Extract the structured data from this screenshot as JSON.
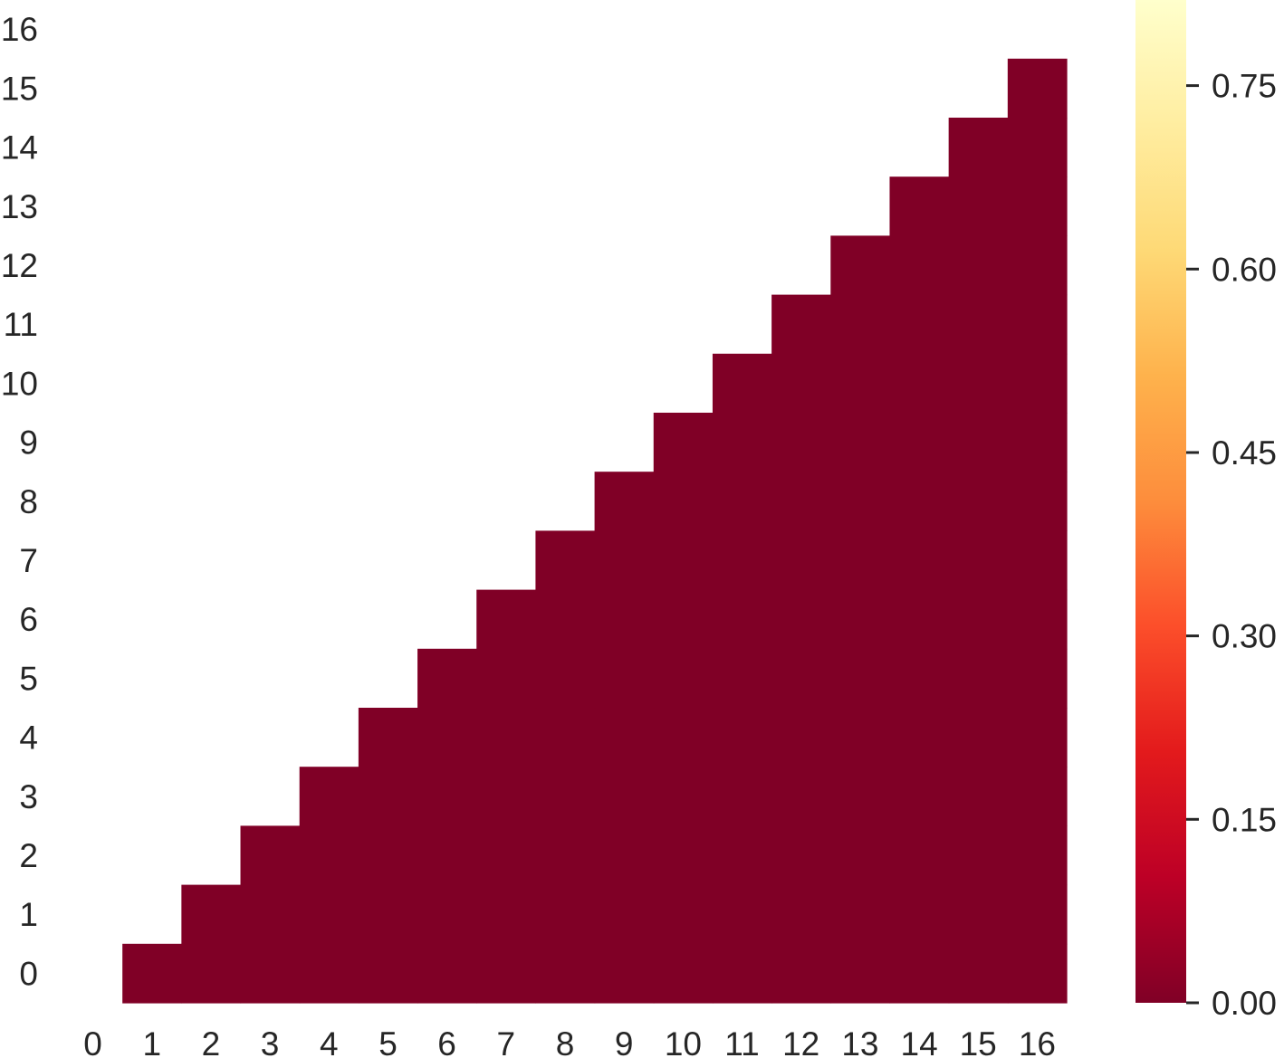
{
  "chart_data": {
    "type": "heatmap",
    "title": "",
    "xlabel": "",
    "ylabel": "",
    "x_ticks": [
      "0",
      "1",
      "2",
      "3",
      "4",
      "5",
      "6",
      "7",
      "8",
      "9",
      "10",
      "11",
      "12",
      "13",
      "14",
      "15",
      "16"
    ],
    "y_ticks": [
      "0",
      "1",
      "2",
      "3",
      "4",
      "5",
      "6",
      "7",
      "8",
      "9",
      "10",
      "11",
      "12",
      "13",
      "14",
      "15",
      "16"
    ],
    "description_of_values": "Upper triangle (column index > row index) filled; diagonal and lower triangle masked/blank",
    "mask": "lower-triangle-including-diagonal",
    "value_range": [
      0.0,
      0.82
    ],
    "cell_value": 0.0,
    "cell_value_range_observed": [
      0.0,
      0.02
    ],
    "colormap": "YlOrRd_r",
    "colormap_stops": [
      "#800026",
      "#bd0026",
      "#e31a1c",
      "#fc4e2a",
      "#fd8d3c",
      "#feb24c",
      "#fed976",
      "#ffeda0",
      "#ffffcc"
    ],
    "colorbar": {
      "ticks": [
        0.0,
        0.15,
        0.3,
        0.45,
        0.6,
        0.75
      ],
      "tick_labels": [
        "0.00",
        "0.15",
        "0.30",
        "0.45",
        "0.60",
        "0.75"
      ]
    },
    "grid": false
  },
  "colors": {
    "cell": "#800026",
    "text": "#262626",
    "background": "#ffffff"
  }
}
